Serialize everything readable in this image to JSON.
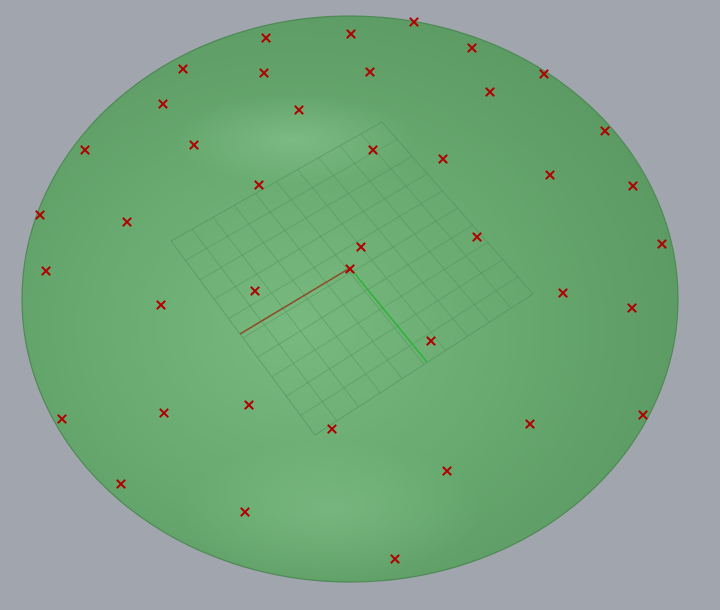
{
  "viewport": {
    "background_color": "#a1a5ad",
    "surface": {
      "shape": "disc",
      "fill_color": "#65a76d",
      "edge_color": "#4e8a55",
      "highlight_color": "#7cbc83"
    },
    "grid": {
      "line_color": "#4f9058",
      "cells_per_side": 10
    },
    "axes": {
      "x_color": "#8b4d2a",
      "y_color": "#2fb33b"
    },
    "point_marker": {
      "icon": "x-mark-icon",
      "color": "#b00000",
      "count": 43
    }
  }
}
